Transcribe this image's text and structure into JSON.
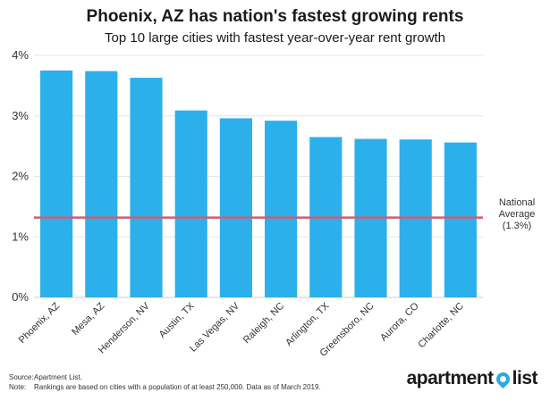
{
  "chart_data": {
    "type": "bar",
    "title": "Phoenix, AZ has nation's fastest growing rents",
    "subtitle": "Top 10 large cities with fastest year-over-year rent growth",
    "categories": [
      "Phoenix, AZ",
      "Mesa, AZ",
      "Henderson, NV",
      "Austin, TX",
      "Las Vegas, NV",
      "Raleigh, NC",
      "Arlington, TX",
      "Greensboro, NC",
      "Aurora, CO",
      "Charlotte, NC"
    ],
    "values": [
      3.75,
      3.74,
      3.63,
      3.09,
      2.96,
      2.92,
      2.65,
      2.62,
      2.61,
      2.56
    ],
    "ylim": [
      0,
      4
    ],
    "yticks": [
      0,
      1,
      2,
      3,
      4
    ],
    "ytick_labels": [
      "0%",
      "1%",
      "2%",
      "3%",
      "4%"
    ],
    "xlabel": "",
    "ylabel": "",
    "grid": true,
    "bar_color": "#2bb0ec",
    "reference_line": {
      "value": 1.32,
      "color": "#c8607a",
      "label_lines": [
        "National",
        "Average",
        "(1.3%)"
      ]
    }
  },
  "footer": {
    "source_label": "Source:",
    "source_text": "Apartment List.",
    "note_label": "Note:",
    "note_text": "Rankings are based on cities with a population of at least 250,000. Data as of March 2019."
  },
  "logo": {
    "left": "apartment",
    "right": "list",
    "pin_color": "#2aa9e8"
  }
}
